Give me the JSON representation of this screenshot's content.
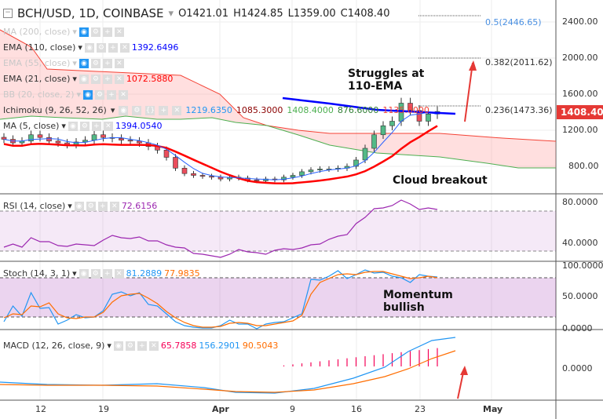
{
  "header": {
    "symbol": "BCH/USD, 1D, COINBASE",
    "open": "O1421.01",
    "high": "H1424.85",
    "low": "L1359.00",
    "close": "C1408.40"
  },
  "legends": {
    "ma200": "MA (200, close)",
    "ema110": "EMA (110, close)",
    "ema110_val": "1392.6496",
    "ema55": "EMA (55, close)",
    "ema21": "EMA (21, close)",
    "ema21_val": "1072.5880",
    "bb": "BB (20, close, 2)",
    "ichimoku": "Ichimoku (9, 26, 52, 26)",
    "ich_vals": [
      "1219.6350",
      "1085.3000",
      "1408.4000",
      "876.6000",
      "1135.0000"
    ],
    "ma5": "MA (5, close)",
    "ma5_val": "1394.0540",
    "rsi": "RSI (14, close)",
    "rsi_val": "72.6156",
    "stoch": "Stoch (14, 3, 1)",
    "stoch_k": "81.2889",
    "stoch_d": "77.9835",
    "macd": "MACD (12, 26, close, 9)",
    "macd_hist": "65.7858",
    "macd_line": "156.2901",
    "macd_signal": "90.5043"
  },
  "price_axis": [
    "2400.00",
    "2000.00",
    "1600.00",
    "1200.00",
    "800.00"
  ],
  "last_price": "1408.40",
  "fib": [
    "0.5(2446.65)",
    "0.382(2011.62)",
    "0.236(1473.36)"
  ],
  "rsi_axis": [
    "80.0000",
    "40.0000"
  ],
  "stoch_axis": [
    "100.0000",
    "50.0000",
    "0.0000"
  ],
  "macd_axis": [
    "0.0000"
  ],
  "x_axis": [
    "12",
    "19",
    "Apr",
    "9",
    "16",
    "23",
    "May"
  ],
  "annotations": {
    "a1": "Struggles at\n110-EMA",
    "a2": "Cloud breakout",
    "a3": "Momentum\nbullish"
  },
  "colors": {
    "up": "#53b987",
    "down": "#eb4d5c",
    "ema110": "#0000ff",
    "ema21": "#ff0000",
    "rsi": "#9c27b0",
    "stoch_k": "#2196f3",
    "stoch_d": "#ff6d00"
  },
  "chart_data": {
    "type": "candlestick",
    "closes": [
      1100,
      1060,
      1080,
      1150,
      1120,
      1080,
      1060,
      1040,
      1070,
      1090,
      1150,
      1120,
      1110,
      1090,
      1080,
      1060,
      1020,
      980,
      900,
      780,
      720,
      700,
      690,
      680,
      660,
      680,
      670,
      650,
      640,
      660,
      650,
      680,
      700,
      740,
      760,
      770,
      770,
      780,
      800,
      870,
      1000,
      1150,
      1250,
      1300,
      1500,
      1420,
      1300,
      1380,
      1408
    ]
  }
}
